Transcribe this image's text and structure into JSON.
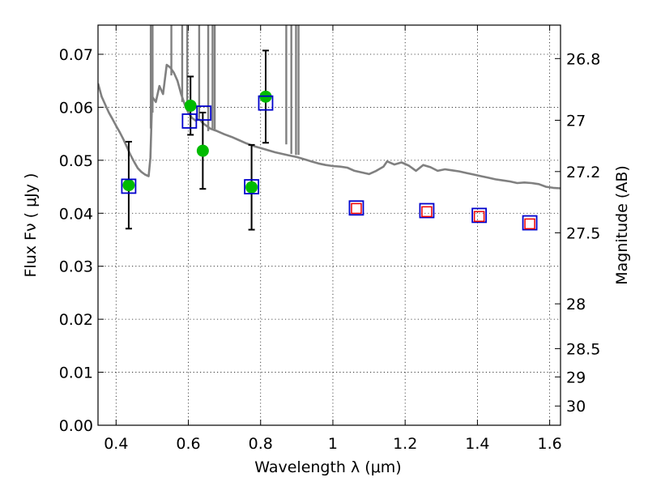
{
  "chart_data": {
    "type": "scatter",
    "xlabel": "Wavelength  λ (μm)",
    "ylabel": "Flux  Fν  ( μJy )",
    "y2label": "Magnitude (AB)",
    "xlim": [
      0.35,
      1.63
    ],
    "ylim": [
      0.0,
      0.0755
    ],
    "grid": true,
    "xticks": [
      {
        "value": 0.4,
        "label": "0.4"
      },
      {
        "value": 0.6,
        "label": "0.6"
      },
      {
        "value": 0.8,
        "label": "0.8"
      },
      {
        "value": 1.0,
        "label": "1"
      },
      {
        "value": 1.2,
        "label": "1.2"
      },
      {
        "value": 1.4,
        "label": "1.4"
      },
      {
        "value": 1.6,
        "label": "1.6"
      }
    ],
    "yticks": [
      {
        "value": 0.0,
        "label": "0.00"
      },
      {
        "value": 0.01,
        "label": "0.01"
      },
      {
        "value": 0.02,
        "label": "0.02"
      },
      {
        "value": 0.03,
        "label": "0.03"
      },
      {
        "value": 0.04,
        "label": "0.04"
      },
      {
        "value": 0.05,
        "label": "0.05"
      },
      {
        "value": 0.06,
        "label": "0.06"
      },
      {
        "value": 0.07,
        "label": "0.07"
      }
    ],
    "y2ticks": [
      {
        "mag": 26.8,
        "label": "26.8"
      },
      {
        "mag": 27.0,
        "label": "27"
      },
      {
        "mag": 27.2,
        "label": "27.2"
      },
      {
        "mag": 27.5,
        "label": "27.5"
      },
      {
        "mag": 28.0,
        "label": "28"
      },
      {
        "mag": 28.5,
        "label": "28.5"
      },
      {
        "mag": 29.0,
        "label": "29"
      },
      {
        "mag": 30.0,
        "label": "30"
      }
    ],
    "model_color": "#808080",
    "observed_color": "#00bb00",
    "model_band_color": "#0000cc",
    "predicted_color": "#ee0000",
    "model_sed": [
      [
        0.35,
        0.0645
      ],
      [
        0.36,
        0.062
      ],
      [
        0.37,
        0.0605
      ],
      [
        0.38,
        0.059
      ],
      [
        0.39,
        0.0578
      ],
      [
        0.4,
        0.0565
      ],
      [
        0.41,
        0.0553
      ],
      [
        0.42,
        0.054
      ],
      [
        0.43,
        0.0525
      ],
      [
        0.44,
        0.051
      ],
      [
        0.45,
        0.0497
      ],
      [
        0.46,
        0.0485
      ],
      [
        0.47,
        0.0478
      ],
      [
        0.48,
        0.0473
      ],
      [
        0.49,
        0.047
      ],
      [
        0.495,
        0.0505
      ],
      [
        0.5,
        0.062
      ],
      [
        0.51,
        0.061
      ],
      [
        0.52,
        0.064
      ],
      [
        0.53,
        0.0625
      ],
      [
        0.54,
        0.068
      ],
      [
        0.55,
        0.0675
      ],
      [
        0.56,
        0.0665
      ],
      [
        0.57,
        0.065
      ],
      [
        0.58,
        0.0625
      ],
      [
        0.59,
        0.0605
      ],
      [
        0.6,
        0.059
      ],
      [
        0.61,
        0.058
      ],
      [
        0.62,
        0.0575
      ],
      [
        0.63,
        0.0578
      ],
      [
        0.64,
        0.057
      ],
      [
        0.66,
        0.056
      ],
      [
        0.68,
        0.0555
      ],
      [
        0.7,
        0.0549
      ],
      [
        0.72,
        0.0544
      ],
      [
        0.74,
        0.0538
      ],
      [
        0.76,
        0.0532
      ],
      [
        0.78,
        0.0527
      ],
      [
        0.8,
        0.0523
      ],
      [
        0.82,
        0.0519
      ],
      [
        0.84,
        0.0515
      ],
      [
        0.86,
        0.0512
      ],
      [
        0.88,
        0.0509
      ],
      [
        0.9,
        0.0506
      ],
      [
        0.92,
        0.0502
      ],
      [
        0.94,
        0.0498
      ],
      [
        0.96,
        0.0494
      ],
      [
        0.98,
        0.0491
      ],
      [
        1.0,
        0.0489
      ],
      [
        1.02,
        0.0488
      ],
      [
        1.04,
        0.0486
      ],
      [
        1.06,
        0.048
      ],
      [
        1.08,
        0.0477
      ],
      [
        1.1,
        0.0474
      ],
      [
        1.12,
        0.048
      ],
      [
        1.14,
        0.0488
      ],
      [
        1.15,
        0.0498
      ],
      [
        1.17,
        0.0492
      ],
      [
        1.19,
        0.0496
      ],
      [
        1.21,
        0.049
      ],
      [
        1.23,
        0.048
      ],
      [
        1.25,
        0.0491
      ],
      [
        1.27,
        0.0487
      ],
      [
        1.29,
        0.048
      ],
      [
        1.31,
        0.0483
      ],
      [
        1.33,
        0.0481
      ],
      [
        1.35,
        0.0479
      ],
      [
        1.37,
        0.0476
      ],
      [
        1.39,
        0.0473
      ],
      [
        1.41,
        0.047
      ],
      [
        1.43,
        0.0467
      ],
      [
        1.45,
        0.0464
      ],
      [
        1.47,
        0.0462
      ],
      [
        1.49,
        0.046
      ],
      [
        1.51,
        0.0457
      ],
      [
        1.53,
        0.0458
      ],
      [
        1.55,
        0.0457
      ],
      [
        1.57,
        0.0455
      ],
      [
        1.59,
        0.045
      ],
      [
        1.61,
        0.0448
      ],
      [
        1.63,
        0.0447
      ]
    ],
    "emission_lines": [
      {
        "x": 0.496,
        "top": 0.076,
        "base": 0.056
      },
      {
        "x": 0.501,
        "top": 0.076,
        "base": 0.059
      },
      {
        "x": 0.553,
        "top": 0.076,
        "base": 0.066
      },
      {
        "x": 0.583,
        "top": 0.076,
        "base": 0.061
      },
      {
        "x": 0.597,
        "top": 0.076,
        "base": 0.0595
      },
      {
        "x": 0.63,
        "top": 0.076,
        "base": 0.058
      },
      {
        "x": 0.655,
        "top": 0.076,
        "base": 0.0555
      },
      {
        "x": 0.667,
        "top": 0.076,
        "base": 0.056
      },
      {
        "x": 0.673,
        "top": 0.076,
        "base": 0.0555
      },
      {
        "x": 0.871,
        "top": 0.076,
        "base": 0.053
      },
      {
        "x": 0.885,
        "top": 0.076,
        "base": 0.0512
      },
      {
        "x": 0.898,
        "top": 0.076,
        "base": 0.051
      },
      {
        "x": 0.905,
        "top": 0.076,
        "base": 0.051
      }
    ],
    "observed": [
      {
        "x": 0.435,
        "y": 0.0453,
        "err": 0.0082
      },
      {
        "x": 0.606,
        "y": 0.0603,
        "err": 0.0055
      },
      {
        "x": 0.64,
        "y": 0.0518,
        "err": 0.0072
      },
      {
        "x": 0.775,
        "y": 0.0449,
        "err": 0.008
      },
      {
        "x": 0.814,
        "y": 0.062,
        "err": 0.0087
      }
    ],
    "model_bands": [
      {
        "x": 0.435,
        "y": 0.0451
      },
      {
        "x": 0.603,
        "y": 0.0574
      },
      {
        "x": 0.643,
        "y": 0.0589
      },
      {
        "x": 0.775,
        "y": 0.045
      },
      {
        "x": 0.814,
        "y": 0.0608
      },
      {
        "x": 1.065,
        "y": 0.041
      },
      {
        "x": 1.26,
        "y": 0.0405
      },
      {
        "x": 1.405,
        "y": 0.0396
      },
      {
        "x": 1.545,
        "y": 0.0382
      }
    ],
    "predicted_bands": [
      {
        "x": 1.065,
        "y": 0.0409
      },
      {
        "x": 1.26,
        "y": 0.0403
      },
      {
        "x": 1.405,
        "y": 0.0394
      },
      {
        "x": 1.545,
        "y": 0.038
      }
    ]
  }
}
